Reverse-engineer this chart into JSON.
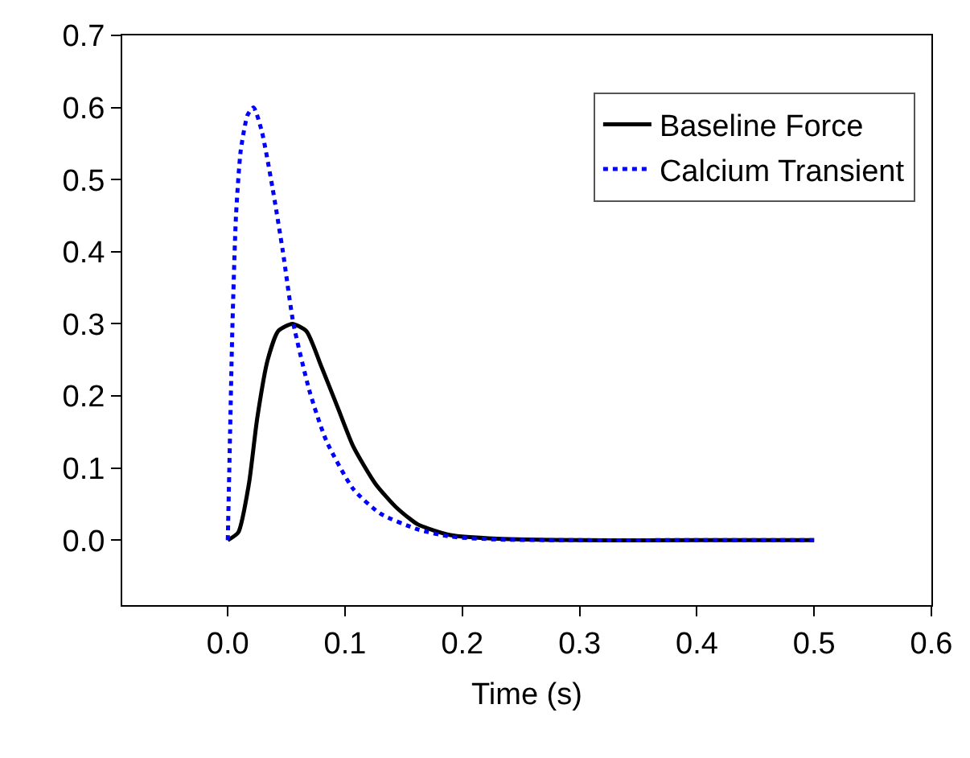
{
  "chart_data": {
    "type": "line",
    "xlabel": "Time (s)",
    "xlim": [
      -0.09,
      0.6
    ],
    "ylim": [
      -0.09,
      0.7
    ],
    "xticks": [
      {
        "value": 0,
        "label": "0.0"
      },
      0.1,
      0.2,
      0.3,
      0.4,
      0.5,
      0.6
    ],
    "yticks": [
      {
        "value": 0,
        "label": "0.0"
      },
      0.1,
      0.2,
      0.3,
      0.4,
      0.5,
      0.6,
      0.7
    ],
    "grid": false,
    "legend": "top right",
    "marker": "none",
    "series": [
      {
        "name": "Baseline Force",
        "color": "#000000",
        "line_style": "solid",
        "x": [
          0,
          0.009,
          0.018,
          0.025,
          0.034,
          0.043,
          0.055,
          0.067,
          0.08,
          0.094,
          0.107,
          0.126,
          0.144,
          0.162,
          0.19,
          0.23,
          0.3,
          0.4,
          0.5
        ],
        "values": [
          0,
          0.011,
          0.078,
          0.168,
          0.25,
          0.29,
          0.3,
          0.29,
          0.24,
          0.183,
          0.13,
          0.078,
          0.045,
          0.022,
          0.007,
          0.002,
          0,
          0,
          0
        ]
      },
      {
        "name": "Calcium Transient",
        "color": "#0000ff",
        "line_style": "dotted",
        "x": [
          0,
          0.002,
          0.004,
          0.007,
          0.011,
          0.017,
          0.022,
          0.029,
          0.038,
          0.047,
          0.056,
          0.07,
          0.084,
          0.107,
          0.13,
          0.162,
          0.19,
          0.23,
          0.3,
          0.4,
          0.5
        ],
        "values": [
          0,
          0.153,
          0.3,
          0.45,
          0.54,
          0.59,
          0.6,
          0.567,
          0.49,
          0.4,
          0.3,
          0.205,
          0.138,
          0.071,
          0.037,
          0.015,
          0.005,
          0.001,
          0,
          0,
          0
        ]
      }
    ]
  }
}
